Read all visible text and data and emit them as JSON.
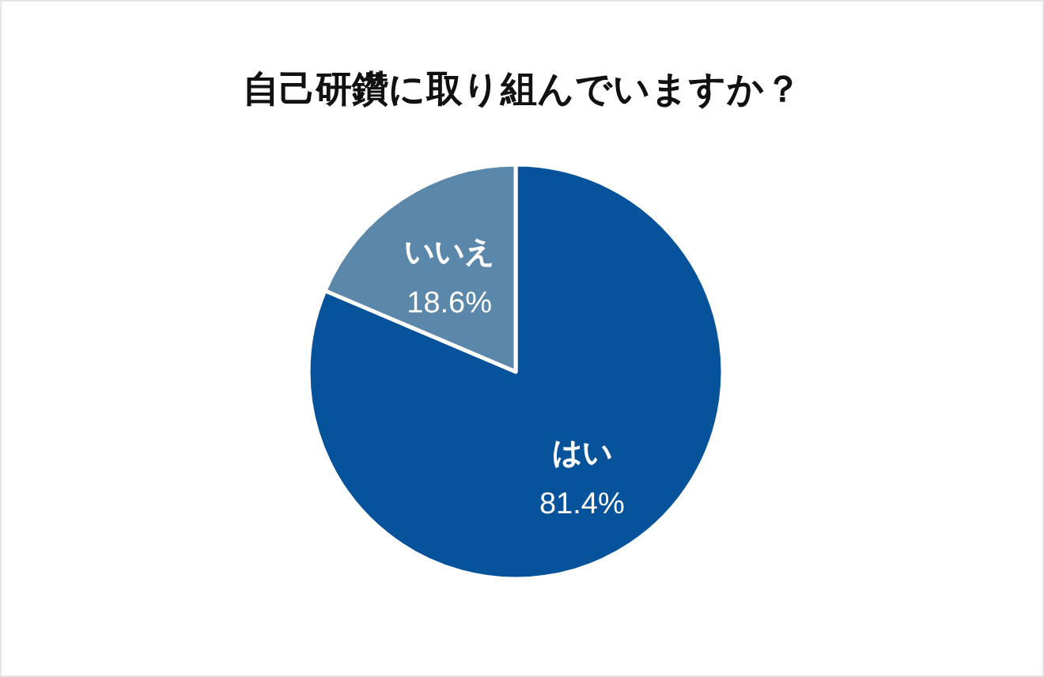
{
  "chart_data": {
    "type": "pie",
    "title": "自己研鑽に取り組んでいますか？",
    "categories": [
      "はい",
      "いいえ"
    ],
    "values": [
      81.4,
      18.6
    ],
    "colors": [
      "#07539b",
      "#5b88aa"
    ],
    "value_labels": [
      "81.4%",
      "18.6%"
    ]
  }
}
